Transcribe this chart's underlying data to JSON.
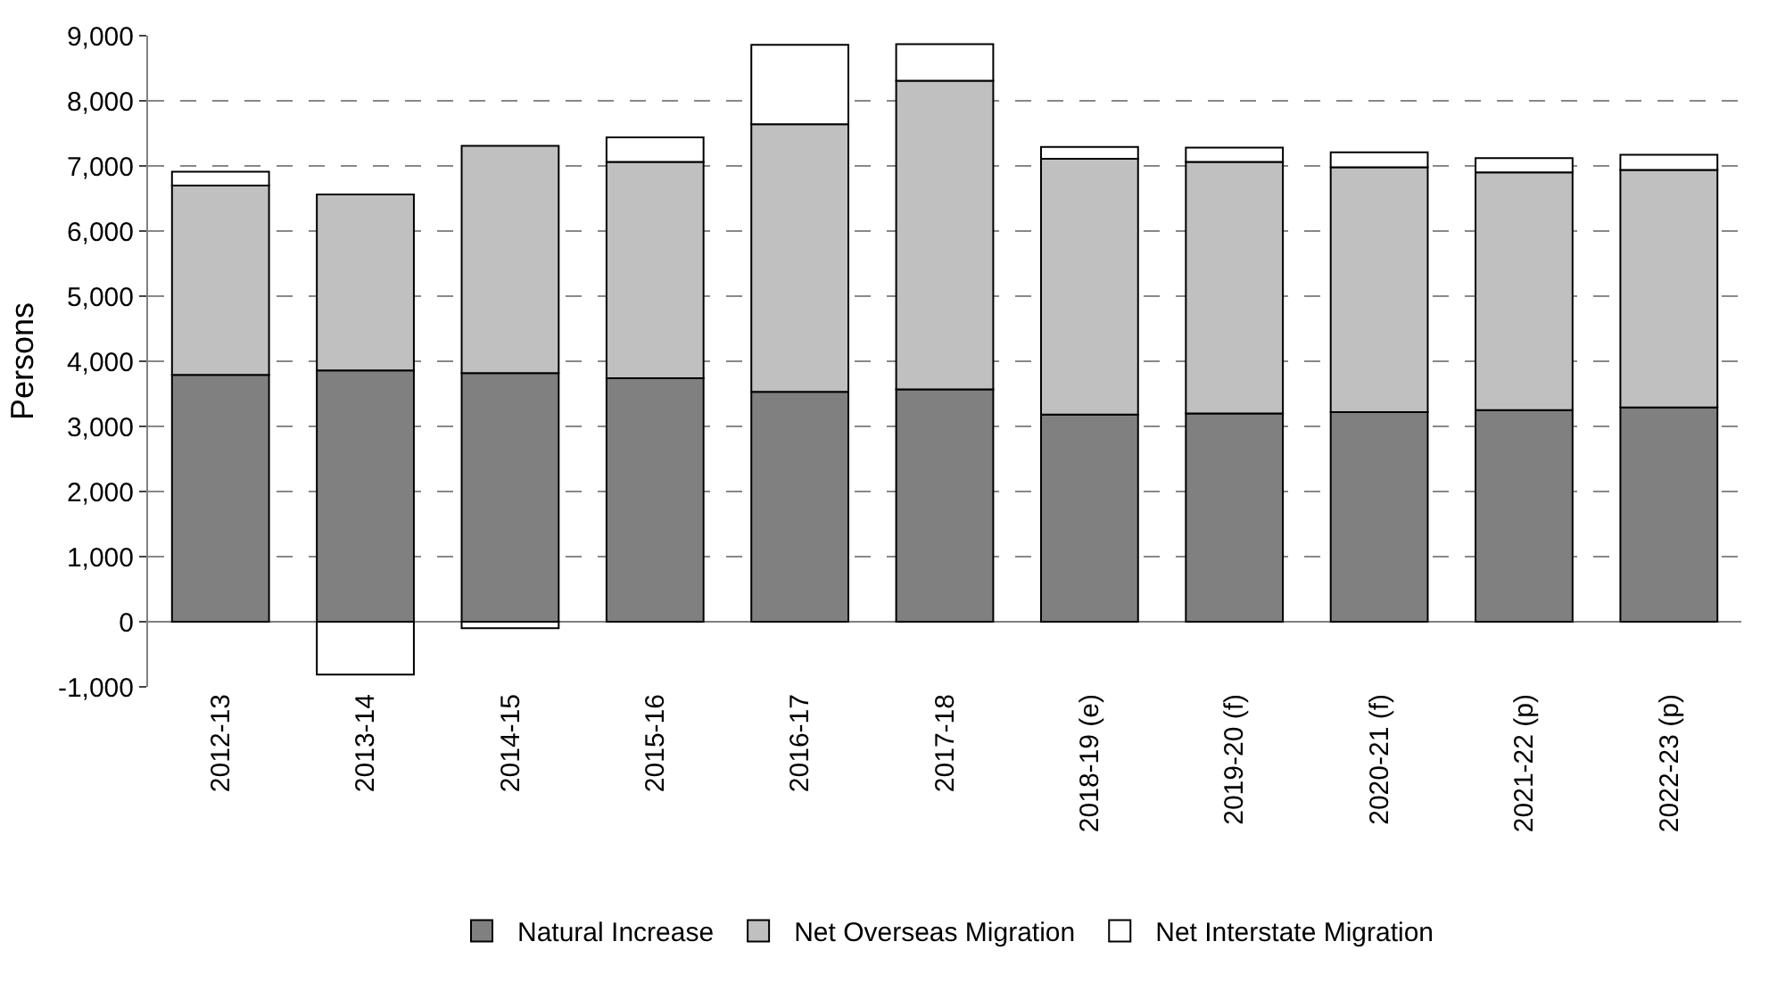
{
  "chart_data": {
    "type": "bar",
    "stacked": true,
    "ylabel": "Persons",
    "categories": [
      "2012-13",
      "2013-14",
      "2014-15",
      "2015-16",
      "2016-17",
      "2017-18",
      "2018-19 (e)",
      "2019-20 (f)",
      "2020-21 (f)",
      "2021-22 (p)",
      "2022-23 (p)"
    ],
    "series": [
      {
        "name": "Natural Increase",
        "color": "#808080",
        "values": [
          3790,
          3860,
          3820,
          3740,
          3530,
          3570,
          3180,
          3200,
          3220,
          3250,
          3290
        ]
      },
      {
        "name": "Net Overseas Migration",
        "color": "#c0c0c0",
        "values": [
          2910,
          2700,
          3490,
          3320,
          4110,
          4740,
          3930,
          3860,
          3760,
          3650,
          3650
        ]
      },
      {
        "name": "Net Interstate Migration",
        "color": "#ffffff",
        "values": [
          210,
          -810,
          -100,
          380,
          1220,
          560,
          180,
          220,
          230,
          220,
          230
        ]
      }
    ],
    "ylim": [
      -1000,
      9000
    ],
    "yticks": [
      {
        "value": -1000,
        "label": "-1,000"
      },
      0,
      {
        "value": 1000,
        "label": "1,000"
      },
      {
        "value": 2000,
        "label": "2,000"
      },
      {
        "value": 3000,
        "label": "3,000"
      },
      {
        "value": 4000,
        "label": "4,000"
      },
      {
        "value": 5000,
        "label": "5,000"
      },
      {
        "value": 6000,
        "label": "6,000"
      },
      {
        "value": 7000,
        "label": "7,000"
      },
      {
        "value": 8000,
        "label": "8,000"
      },
      {
        "value": 9000,
        "label": "9,000"
      }
    ],
    "grid": "y",
    "legend": "bottom"
  }
}
